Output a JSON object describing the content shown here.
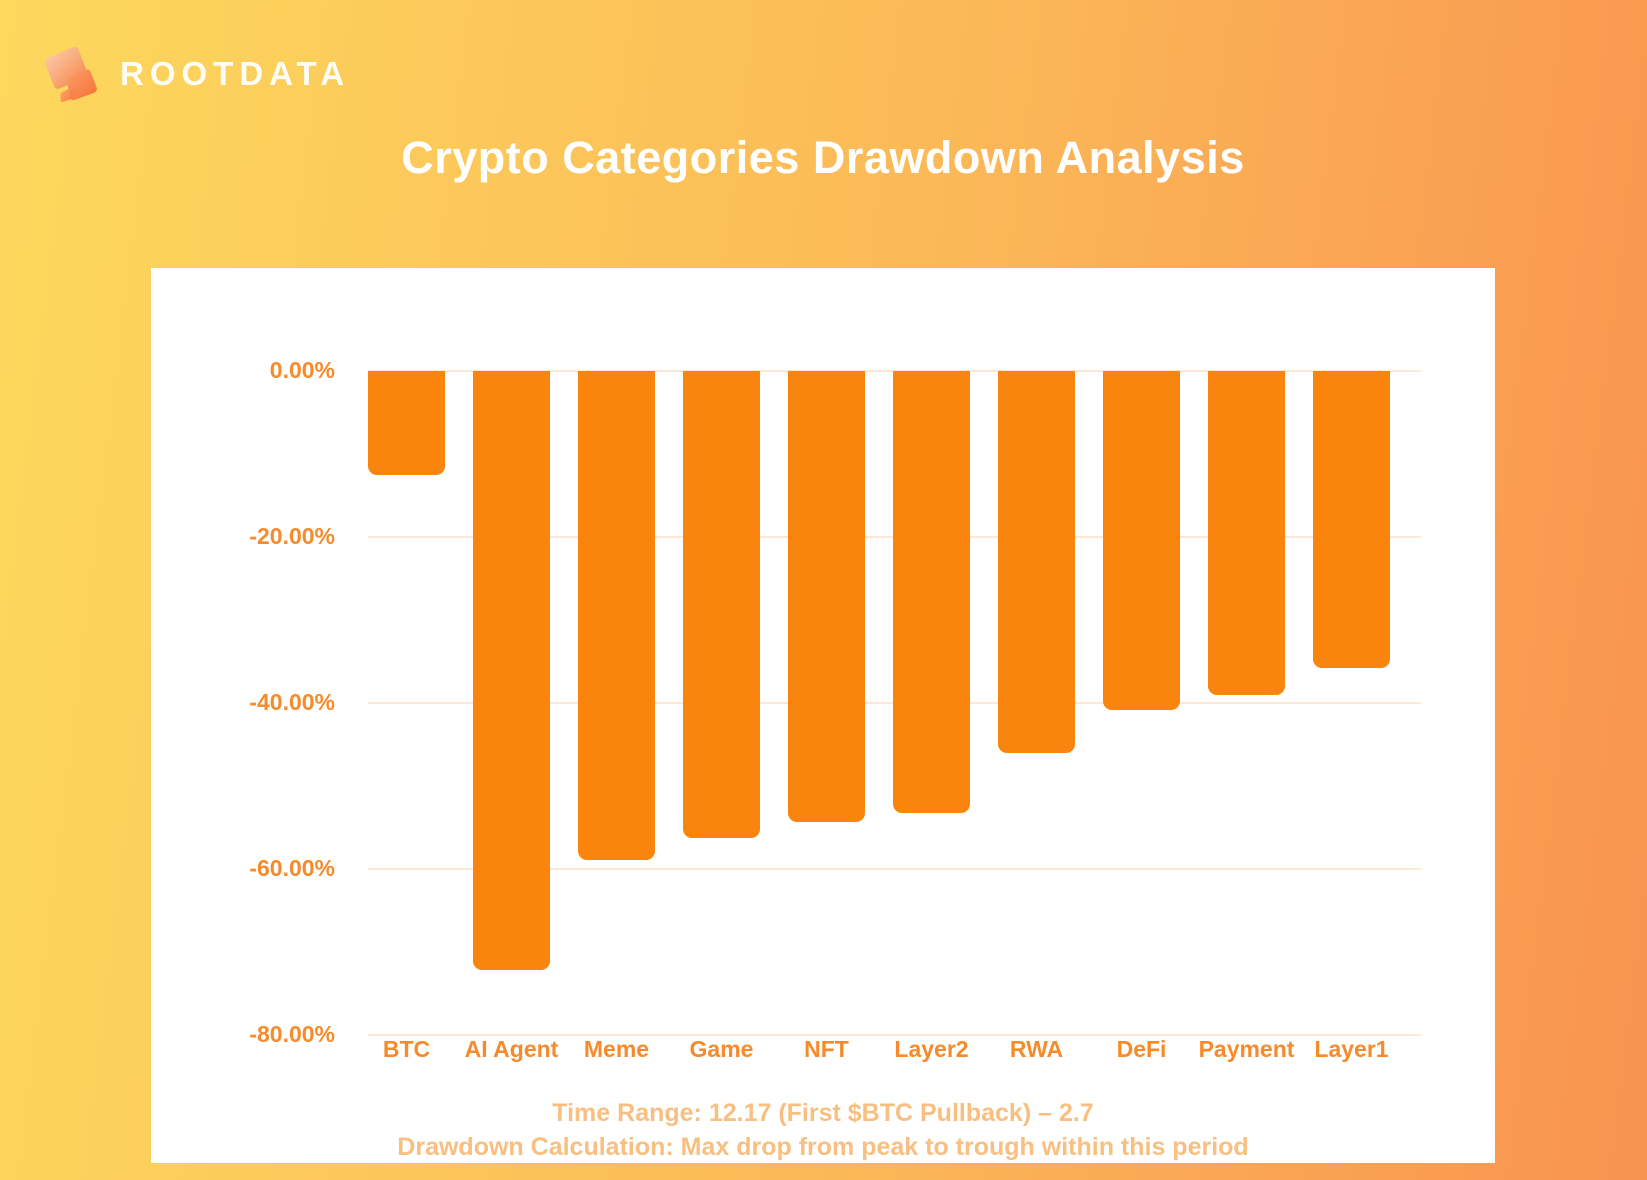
{
  "logo": {
    "text": "ROOTDATA",
    "icon": "rootdata-flag-icon"
  },
  "title": "Crypto Categories Drawdown Analysis",
  "footnotes": [
    "Time Range: 12.17 (First $BTC Pullback) – 2.7",
    "Drawdown Calculation: Max drop from peak to trough within this period"
  ],
  "colors": {
    "background_from": "#FDD85D",
    "background_to": "#F99350",
    "card": "#FFFFFF",
    "bar": "#F9840E",
    "axis_label": "#F78A2B",
    "gridline": "#FBE9D5",
    "title": "#FFFFFF",
    "footnote": "#F9BF80"
  },
  "chart_data": {
    "type": "bar",
    "title": "Crypto Categories Drawdown Analysis",
    "categories": [
      "BTC",
      "AI Agent",
      "Meme",
      "Game",
      "NFT",
      "Layer2",
      "RWA",
      "DeFi",
      "Payment",
      "Layer1"
    ],
    "values": [
      -12.5,
      -72.2,
      -58.9,
      -56.3,
      -54.3,
      -53.3,
      -46.0,
      -40.8,
      -39.0,
      -35.8
    ],
    "unit": "percent",
    "xlabel": "",
    "ylabel": "",
    "ylim": [
      -80,
      0
    ],
    "ytick_labels": [
      "0.00%",
      "-20.00%",
      "-40.00%",
      "-60.00%",
      "-80.00%"
    ],
    "ytick_values": [
      0,
      -20,
      -40,
      -60,
      -80
    ],
    "grid": true,
    "legend": false,
    "bar_color": "#F9840E"
  }
}
